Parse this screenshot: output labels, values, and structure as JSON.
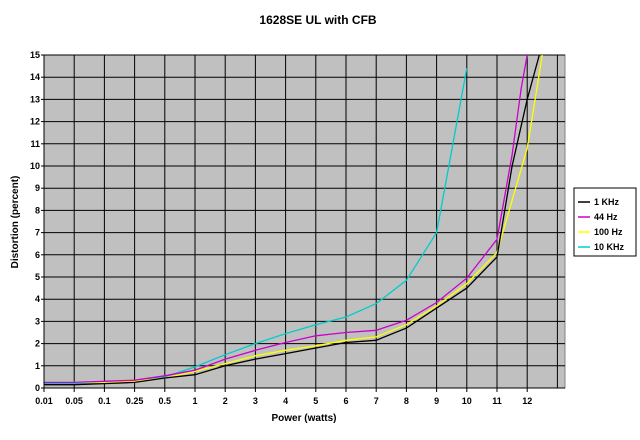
{
  "chart_data": {
    "type": "line",
    "title": "1628SE UL with CFB",
    "xlabel": "Power (watts)",
    "ylabel": "Distortion (percent)",
    "ylim": [
      0,
      15
    ],
    "ytick_step": 1,
    "grid": true,
    "legend_position": "right",
    "plot_background": "#c0c0c0",
    "categories": [
      "0.01",
      "0.05",
      "0.1",
      "0.25",
      "0.5",
      "1",
      "2",
      "3",
      "4",
      "5",
      "6",
      "7",
      "8",
      "9",
      "10",
      "11",
      "12"
    ],
    "series": [
      {
        "name": "1 KHz",
        "color": "#000000",
        "points": [
          [
            0,
            0.15
          ],
          [
            1,
            0.15
          ],
          [
            2,
            0.2
          ],
          [
            3,
            0.25
          ],
          [
            4,
            0.45
          ],
          [
            5,
            0.6
          ],
          [
            6,
            1.0
          ],
          [
            7,
            1.3
          ],
          [
            8,
            1.55
          ],
          [
            9,
            1.8
          ],
          [
            10,
            2.05
          ],
          [
            11,
            2.15
          ],
          [
            12,
            2.7
          ],
          [
            13,
            3.6
          ],
          [
            14,
            4.5
          ],
          [
            15,
            5.9
          ],
          [
            15.5,
            10.0
          ],
          [
            16,
            13.0
          ],
          [
            16.4,
            15.0
          ]
        ]
      },
      {
        "name": "44 Hz",
        "color": "#cc00cc",
        "points": [
          [
            0,
            0.25
          ],
          [
            1,
            0.25
          ],
          [
            2,
            0.3
          ],
          [
            3,
            0.35
          ],
          [
            4,
            0.55
          ],
          [
            5,
            0.8
          ],
          [
            6,
            1.3
          ],
          [
            7,
            1.7
          ],
          [
            8,
            2.05
          ],
          [
            9,
            2.35
          ],
          [
            10,
            2.5
          ],
          [
            11,
            2.6
          ],
          [
            12,
            3.05
          ],
          [
            13,
            3.85
          ],
          [
            14,
            4.95
          ],
          [
            15,
            6.7
          ],
          [
            15.5,
            10.5
          ],
          [
            15.8,
            13.5
          ],
          [
            16,
            15.0
          ]
        ]
      },
      {
        "name": "100 Hz",
        "color": "#ffff00",
        "points": [
          [
            0,
            0.25
          ],
          [
            1,
            0.25
          ],
          [
            2,
            0.25
          ],
          [
            3,
            0.3
          ],
          [
            4,
            0.45
          ],
          [
            5,
            0.75
          ],
          [
            6,
            1.1
          ],
          [
            7,
            1.45
          ],
          [
            8,
            1.7
          ],
          [
            9,
            1.9
          ],
          [
            10,
            2.15
          ],
          [
            11,
            2.3
          ],
          [
            12,
            2.85
          ],
          [
            13,
            3.7
          ],
          [
            14,
            4.7
          ],
          [
            15,
            6.1
          ],
          [
            16,
            10.8
          ],
          [
            16.5,
            15.0
          ]
        ]
      },
      {
        "name": "10 KHz",
        "color": "#00cccc",
        "points": [
          [
            0,
            0.2
          ],
          [
            1,
            0.2
          ],
          [
            2,
            0.25
          ],
          [
            3,
            0.3
          ],
          [
            4,
            0.5
          ],
          [
            5,
            0.95
          ],
          [
            6,
            1.5
          ],
          [
            7,
            2.0
          ],
          [
            8,
            2.45
          ],
          [
            9,
            2.85
          ],
          [
            10,
            3.2
          ],
          [
            11,
            3.8
          ],
          [
            12,
            4.85
          ],
          [
            13,
            7.0
          ],
          [
            14,
            14.4
          ]
        ]
      }
    ]
  }
}
